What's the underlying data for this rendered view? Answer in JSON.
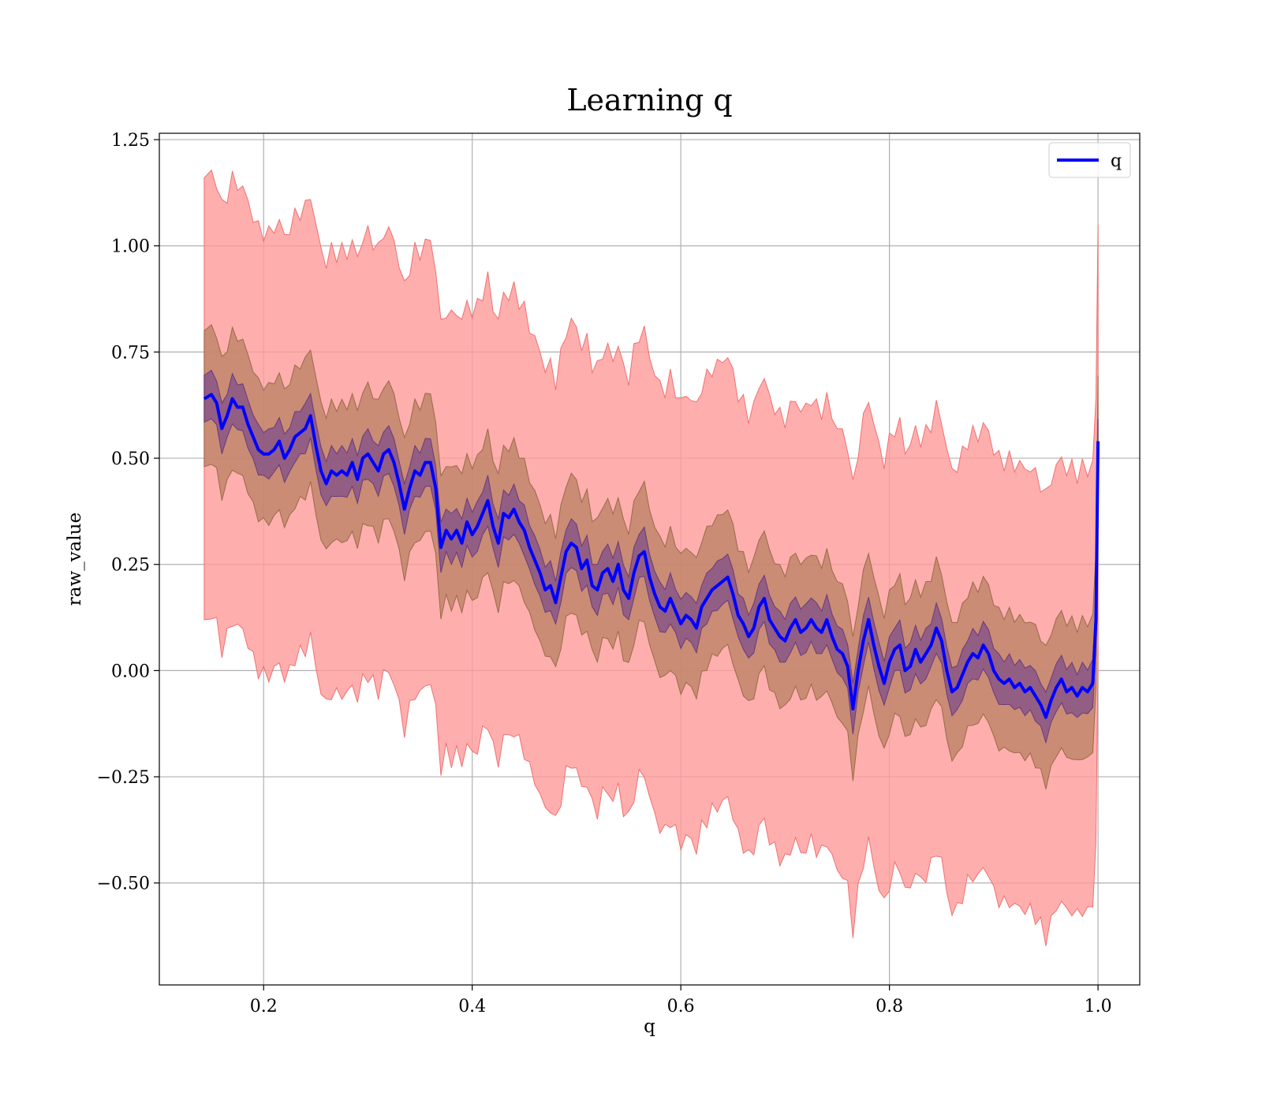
{
  "chart_data": {
    "type": "line",
    "title": "Learning q",
    "xlabel": "q",
    "ylabel": "raw_value",
    "xlim": [
      0.1,
      1.04
    ],
    "ylim": [
      -0.74,
      1.265
    ],
    "xticks": [
      0.2,
      0.4,
      0.6,
      0.8,
      1.0
    ],
    "xtick_labels": [
      "0.2",
      "0.4",
      "0.6",
      "0.8",
      "1.0"
    ],
    "yticks": [
      -0.5,
      -0.25,
      0.0,
      0.25,
      0.5,
      0.75,
      1.0,
      1.25
    ],
    "ytick_labels": [
      "−0.50",
      "−0.25",
      "0.00",
      "0.25",
      "0.50",
      "0.75",
      "1.00",
      "1.25"
    ],
    "grid": true,
    "legend": {
      "position": "top-right",
      "entries": [
        "q"
      ]
    },
    "colors": {
      "line": "#0000ff",
      "outer_band": "#ff9a9a",
      "middle_band": "#b88060",
      "inner_band": "#7a4a8a",
      "grid": "#b0b0b0"
    },
    "bands_halfwidth": {
      "outer": 0.52,
      "middle": 0.16,
      "inner": 0.055
    },
    "series": [
      {
        "name": "q",
        "x": [
          0.143,
          0.15,
          0.155,
          0.16,
          0.165,
          0.17,
          0.175,
          0.18,
          0.185,
          0.19,
          0.195,
          0.2,
          0.205,
          0.21,
          0.215,
          0.22,
          0.225,
          0.23,
          0.235,
          0.24,
          0.245,
          0.25,
          0.255,
          0.26,
          0.265,
          0.27,
          0.275,
          0.28,
          0.285,
          0.29,
          0.295,
          0.3,
          0.305,
          0.31,
          0.315,
          0.32,
          0.325,
          0.33,
          0.335,
          0.34,
          0.345,
          0.35,
          0.355,
          0.36,
          0.365,
          0.37,
          0.375,
          0.38,
          0.385,
          0.39,
          0.395,
          0.4,
          0.405,
          0.41,
          0.415,
          0.42,
          0.425,
          0.43,
          0.435,
          0.44,
          0.445,
          0.45,
          0.455,
          0.46,
          0.465,
          0.47,
          0.475,
          0.48,
          0.485,
          0.49,
          0.495,
          0.5,
          0.505,
          0.51,
          0.515,
          0.52,
          0.525,
          0.53,
          0.535,
          0.54,
          0.545,
          0.55,
          0.555,
          0.56,
          0.565,
          0.57,
          0.575,
          0.58,
          0.585,
          0.59,
          0.595,
          0.6,
          0.605,
          0.61,
          0.615,
          0.62,
          0.625,
          0.63,
          0.635,
          0.64,
          0.645,
          0.65,
          0.655,
          0.66,
          0.665,
          0.67,
          0.675,
          0.68,
          0.685,
          0.69,
          0.695,
          0.7,
          0.705,
          0.71,
          0.715,
          0.72,
          0.725,
          0.73,
          0.735,
          0.74,
          0.745,
          0.75,
          0.755,
          0.76,
          0.765,
          0.77,
          0.775,
          0.78,
          0.785,
          0.79,
          0.795,
          0.8,
          0.805,
          0.81,
          0.815,
          0.82,
          0.825,
          0.83,
          0.835,
          0.84,
          0.845,
          0.85,
          0.855,
          0.86,
          0.865,
          0.87,
          0.875,
          0.88,
          0.885,
          0.89,
          0.895,
          0.9,
          0.905,
          0.91,
          0.915,
          0.92,
          0.925,
          0.93,
          0.935,
          0.94,
          0.945,
          0.95,
          0.955,
          0.96,
          0.965,
          0.97,
          0.975,
          0.98,
          0.985,
          0.99,
          0.995,
          0.998,
          1.0
        ],
        "values": [
          0.64,
          0.65,
          0.63,
          0.57,
          0.6,
          0.64,
          0.62,
          0.62,
          0.58,
          0.55,
          0.52,
          0.51,
          0.51,
          0.52,
          0.54,
          0.5,
          0.52,
          0.55,
          0.56,
          0.57,
          0.6,
          0.53,
          0.47,
          0.44,
          0.47,
          0.46,
          0.47,
          0.46,
          0.49,
          0.45,
          0.5,
          0.51,
          0.49,
          0.47,
          0.51,
          0.52,
          0.49,
          0.44,
          0.38,
          0.43,
          0.47,
          0.46,
          0.49,
          0.49,
          0.43,
          0.29,
          0.33,
          0.31,
          0.33,
          0.3,
          0.35,
          0.32,
          0.34,
          0.37,
          0.4,
          0.34,
          0.3,
          0.37,
          0.36,
          0.38,
          0.35,
          0.33,
          0.29,
          0.26,
          0.23,
          0.19,
          0.2,
          0.16,
          0.22,
          0.28,
          0.3,
          0.29,
          0.24,
          0.26,
          0.2,
          0.19,
          0.23,
          0.24,
          0.21,
          0.25,
          0.19,
          0.17,
          0.23,
          0.27,
          0.28,
          0.22,
          0.18,
          0.15,
          0.14,
          0.17,
          0.14,
          0.11,
          0.13,
          0.12,
          0.1,
          0.15,
          0.17,
          0.19,
          0.2,
          0.21,
          0.22,
          0.18,
          0.13,
          0.11,
          0.08,
          0.1,
          0.15,
          0.17,
          0.12,
          0.1,
          0.08,
          0.07,
          0.1,
          0.12,
          0.09,
          0.1,
          0.12,
          0.1,
          0.09,
          0.12,
          0.08,
          0.05,
          0.04,
          0.01,
          -0.09,
          0.0,
          0.07,
          0.12,
          0.06,
          0.01,
          -0.03,
          0.02,
          0.05,
          0.06,
          0.0,
          0.01,
          0.05,
          0.02,
          0.04,
          0.06,
          0.1,
          0.07,
          0.0,
          -0.05,
          -0.04,
          -0.01,
          0.02,
          0.04,
          0.03,
          0.06,
          0.04,
          0.0,
          -0.02,
          -0.03,
          -0.02,
          -0.04,
          -0.03,
          -0.05,
          -0.04,
          -0.06,
          -0.08,
          -0.11,
          -0.07,
          -0.04,
          -0.02,
          -0.05,
          -0.04,
          -0.06,
          -0.04,
          -0.05,
          -0.03,
          0.12,
          0.54
        ]
      }
    ]
  }
}
